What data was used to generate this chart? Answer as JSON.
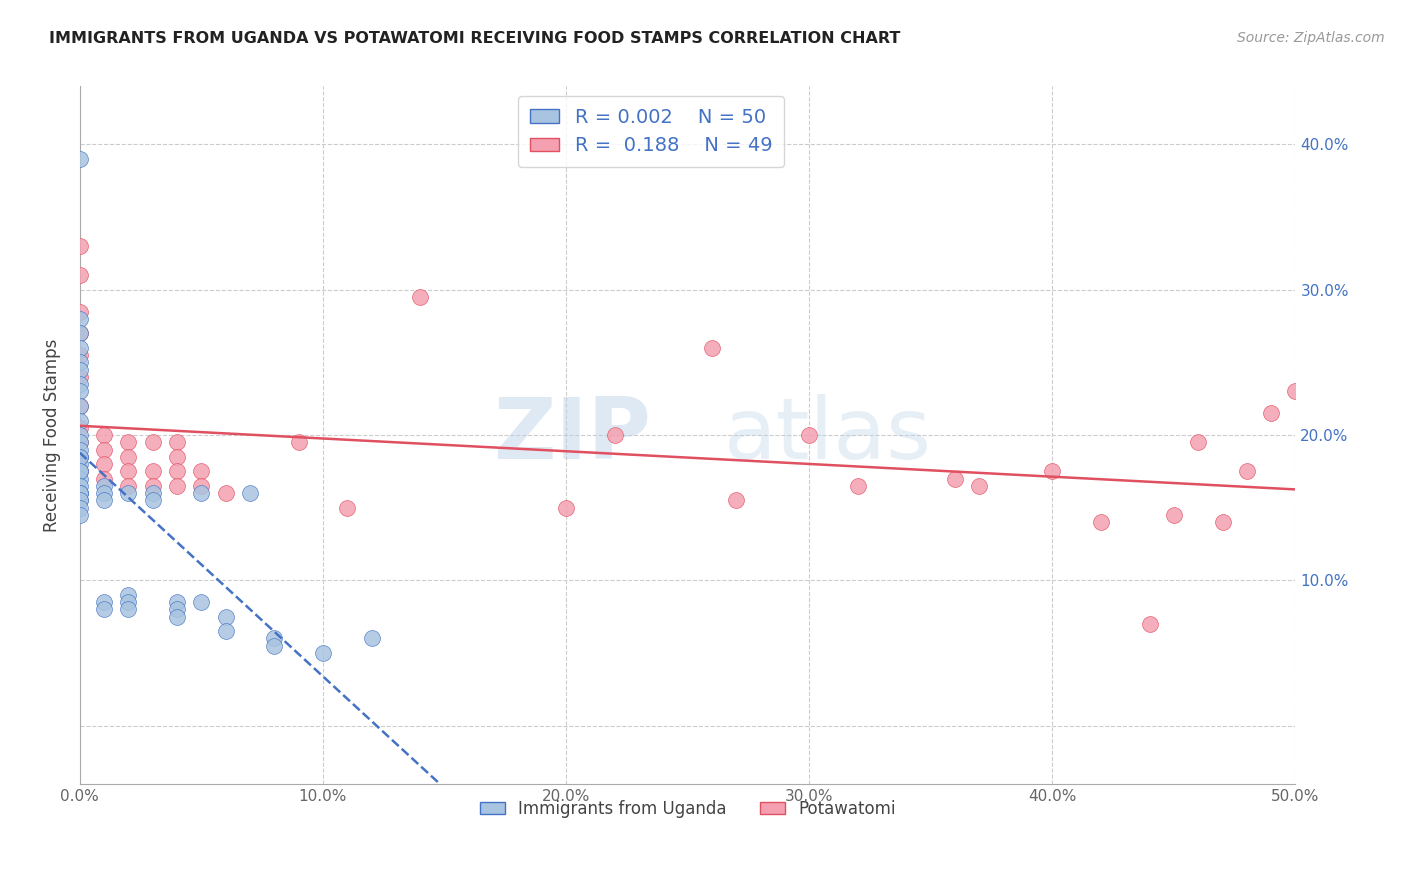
{
  "title": "IMMIGRANTS FROM UGANDA VS POTAWATOMI RECEIVING FOOD STAMPS CORRELATION CHART",
  "source": "Source: ZipAtlas.com",
  "ylabel": "Receiving Food Stamps",
  "xlim": [
    0.0,
    0.5
  ],
  "ylim": [
    -0.04,
    0.44
  ],
  "xticks": [
    0.0,
    0.1,
    0.2,
    0.3,
    0.4,
    0.5
  ],
  "xticklabels": [
    "0.0%",
    "10.0%",
    "20.0%",
    "30.0%",
    "40.0%",
    "50.0%"
  ],
  "yticks": [
    0.0,
    0.1,
    0.2,
    0.3,
    0.4
  ],
  "right_ytick_labels": [
    "",
    "10.0%",
    "20.0%",
    "30.0%",
    "40.0%"
  ],
  "legend_label1": "Immigrants from Uganda",
  "legend_label2": "Potawatomi",
  "color_uganda": "#a8c4e0",
  "color_potawatomi": "#f4a0b0",
  "color_line_uganda": "#4472c4",
  "color_line_potawatomi": "#e05060",
  "watermark_zip": "ZIP",
  "watermark_atlas": "atlas",
  "uganda_x": [
    0.0,
    0.0,
    0.0,
    0.0,
    0.0,
    0.0,
    0.0,
    0.0,
    0.0,
    0.0,
    0.0,
    0.0,
    0.0,
    0.0,
    0.0,
    0.0,
    0.0,
    0.0,
    0.0,
    0.0,
    0.0,
    0.0,
    0.0,
    0.0,
    0.0,
    0.0,
    0.0,
    0.01,
    0.01,
    0.01,
    0.01,
    0.01,
    0.02,
    0.02,
    0.02,
    0.02,
    0.03,
    0.03,
    0.04,
    0.04,
    0.04,
    0.05,
    0.05,
    0.06,
    0.06,
    0.07,
    0.08,
    0.08,
    0.1,
    0.12
  ],
  "uganda_y": [
    0.39,
    0.28,
    0.27,
    0.26,
    0.25,
    0.245,
    0.235,
    0.23,
    0.22,
    0.21,
    0.2,
    0.195,
    0.185,
    0.18,
    0.175,
    0.17,
    0.16,
    0.155,
    0.19,
    0.185,
    0.175,
    0.165,
    0.16,
    0.16,
    0.155,
    0.15,
    0.145,
    0.165,
    0.16,
    0.155,
    0.085,
    0.08,
    0.16,
    0.09,
    0.085,
    0.08,
    0.16,
    0.155,
    0.085,
    0.08,
    0.075,
    0.16,
    0.085,
    0.075,
    0.065,
    0.16,
    0.06,
    0.055,
    0.05,
    0.06
  ],
  "potawatomi_x": [
    0.0,
    0.0,
    0.0,
    0.0,
    0.0,
    0.0,
    0.0,
    0.0,
    0.0,
    0.0,
    0.0,
    0.01,
    0.01,
    0.01,
    0.01,
    0.02,
    0.02,
    0.02,
    0.02,
    0.03,
    0.03,
    0.03,
    0.04,
    0.04,
    0.04,
    0.04,
    0.05,
    0.05,
    0.06,
    0.09,
    0.11,
    0.14,
    0.2,
    0.22,
    0.26,
    0.27,
    0.3,
    0.32,
    0.36,
    0.37,
    0.4,
    0.42,
    0.44,
    0.45,
    0.46,
    0.47,
    0.48,
    0.49,
    0.5
  ],
  "potawatomi_y": [
    0.33,
    0.31,
    0.285,
    0.27,
    0.255,
    0.24,
    0.22,
    0.205,
    0.195,
    0.185,
    0.175,
    0.2,
    0.19,
    0.18,
    0.17,
    0.195,
    0.185,
    0.175,
    0.165,
    0.195,
    0.175,
    0.165,
    0.195,
    0.185,
    0.175,
    0.165,
    0.175,
    0.165,
    0.16,
    0.195,
    0.15,
    0.295,
    0.15,
    0.2,
    0.26,
    0.155,
    0.2,
    0.165,
    0.17,
    0.165,
    0.175,
    0.14,
    0.07,
    0.145,
    0.195,
    0.14,
    0.175,
    0.215,
    0.23
  ]
}
